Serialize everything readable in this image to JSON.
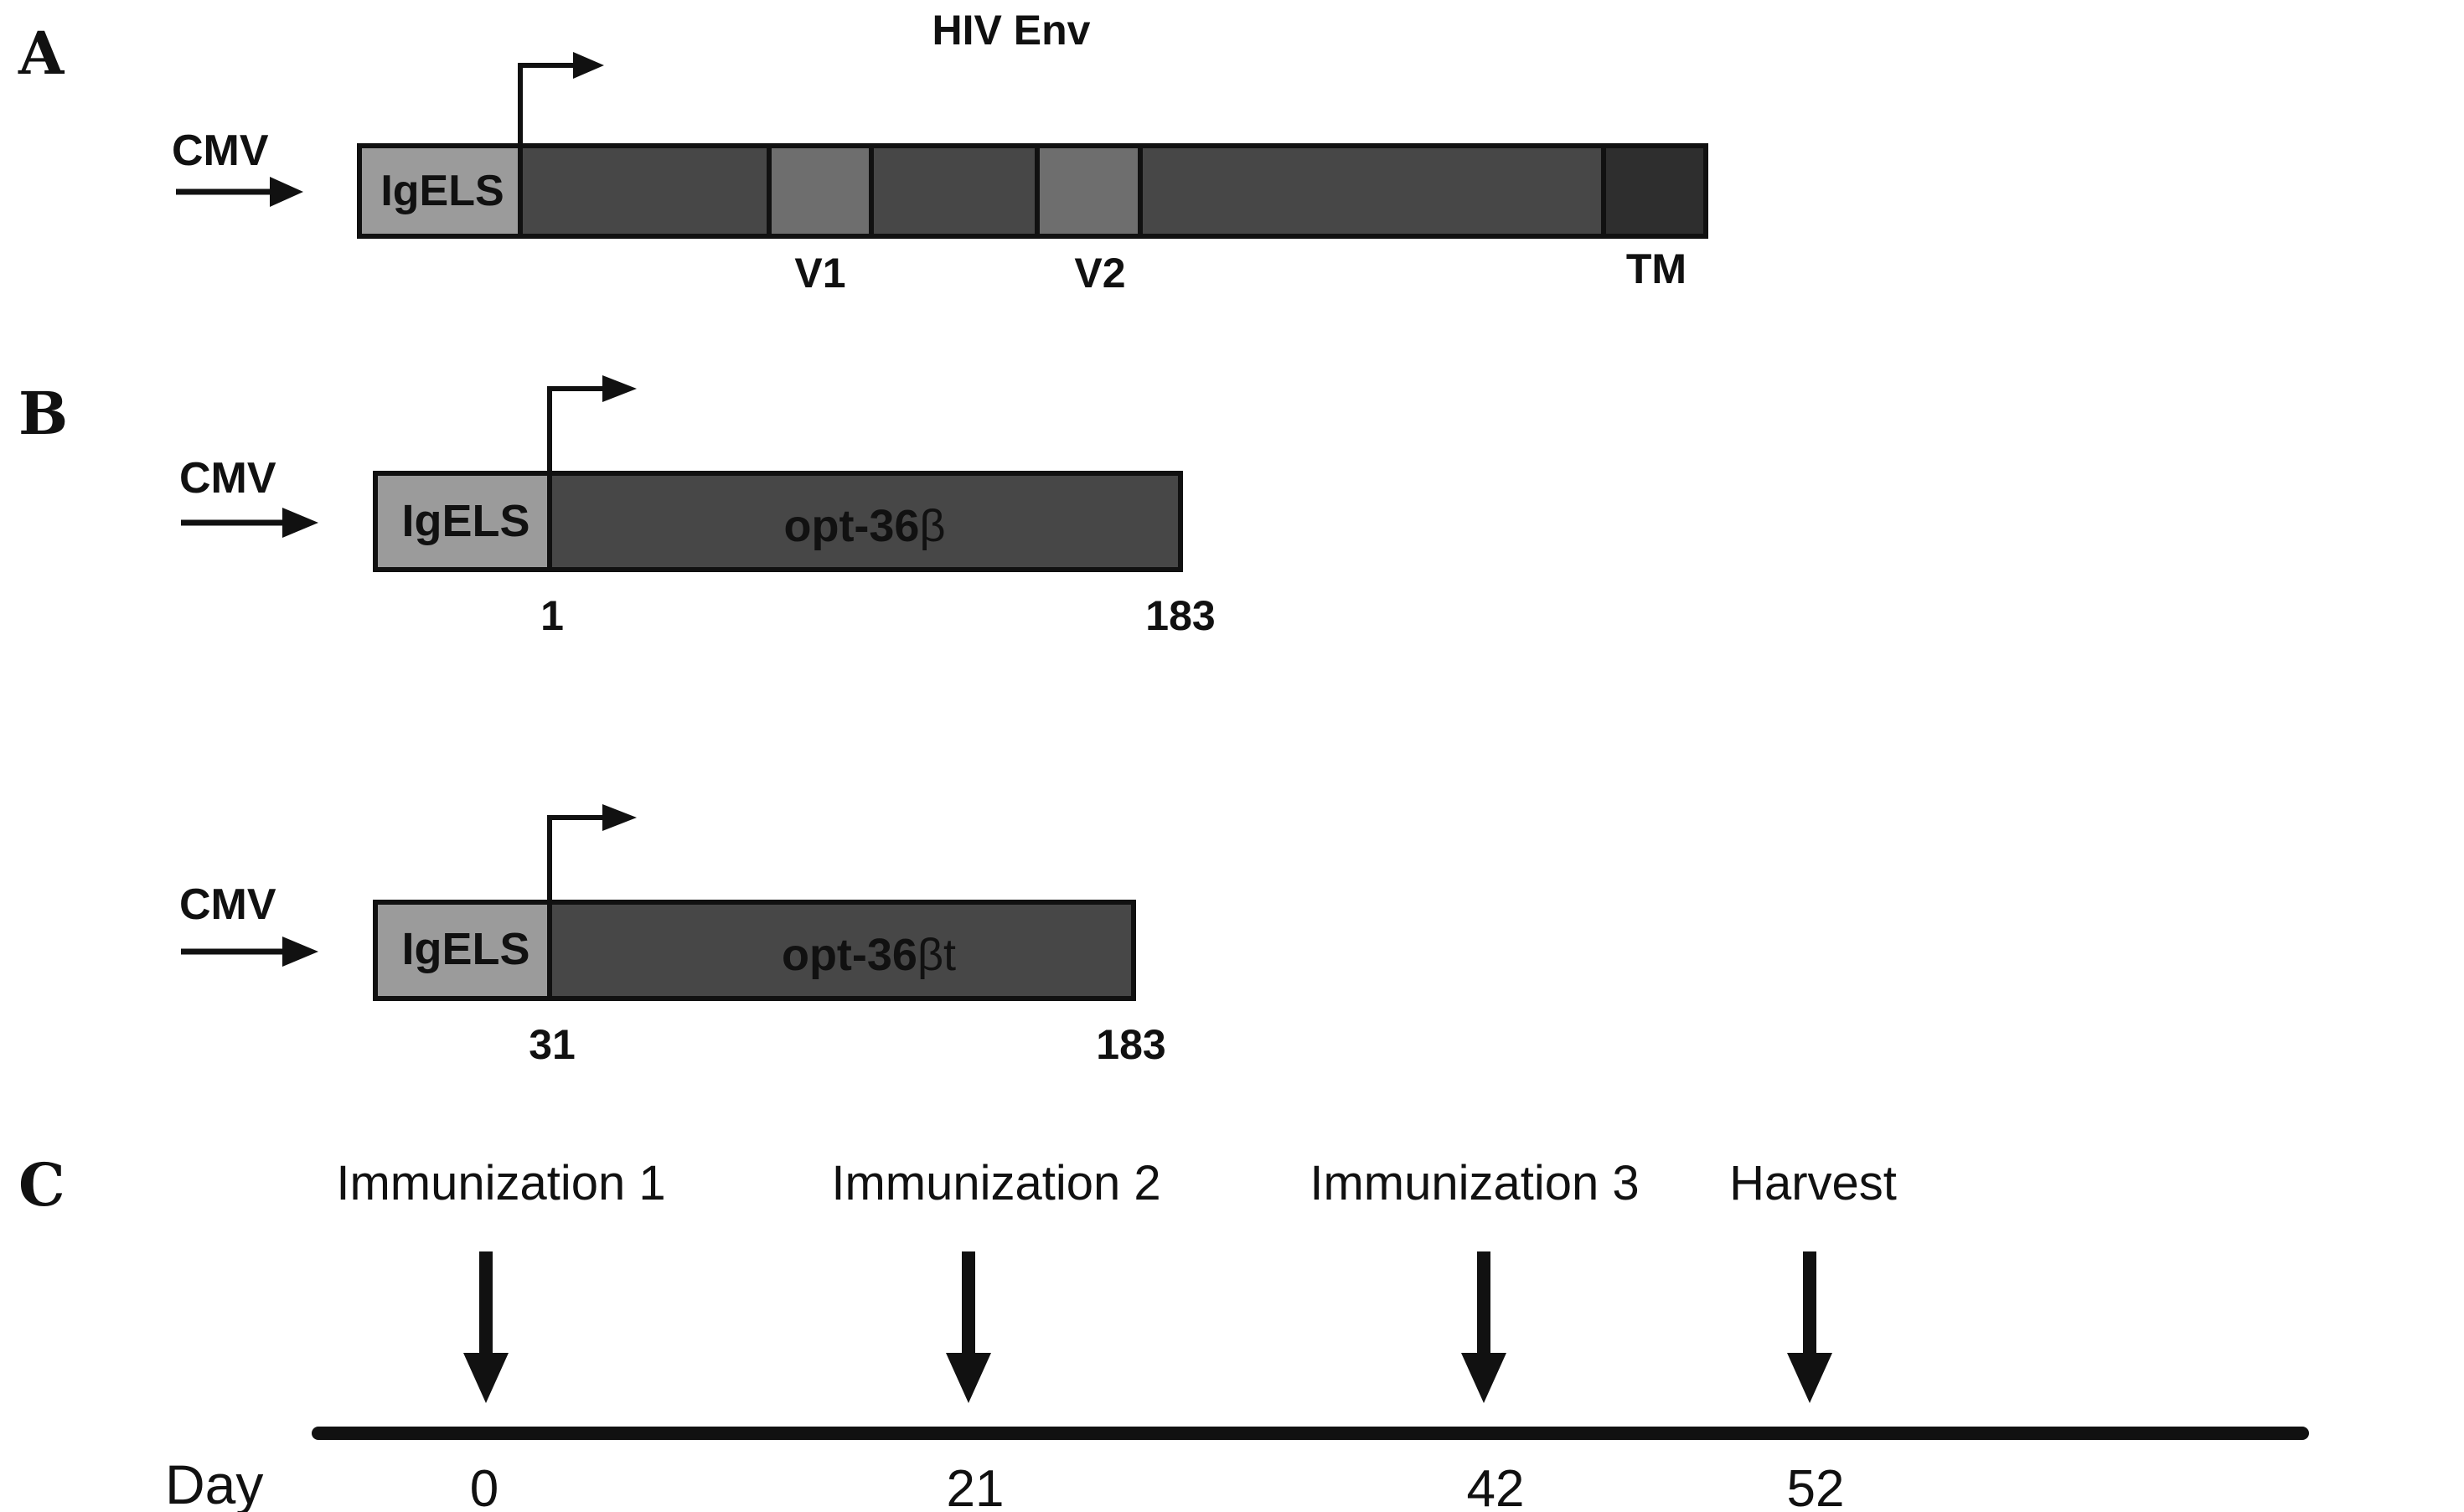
{
  "panels": {
    "a": {
      "letter": "A",
      "title": "HIV Env",
      "promoter": "CMV",
      "leader": "IgELS",
      "labels": {
        "v1": "V1",
        "v2": "V2",
        "tm": "TM"
      }
    },
    "b1": {
      "letter": "B",
      "promoter": "CMV",
      "leader": "IgELS",
      "construct_prefix": "opt-36",
      "construct_greek": "β",
      "start": "1",
      "end": "183"
    },
    "b2": {
      "promoter": "CMV",
      "leader": "IgELS",
      "construct_prefix": "opt-36",
      "construct_greek": "βt",
      "start": "31",
      "end": "183"
    },
    "c": {
      "letter": "C",
      "day_label": "Day",
      "events": [
        {
          "label": "Immunization 1",
          "day": "0"
        },
        {
          "label": "Immunization 2",
          "day": "21"
        },
        {
          "label": "Immunization 3",
          "day": "42"
        },
        {
          "label": "Harvest",
          "day": "52"
        }
      ]
    }
  },
  "colors": {
    "dark_segment": "#474747",
    "variable_loop": "#6e6e6e",
    "leader": "#9b9b9b",
    "tm": "#2e2e2e",
    "ink": "#111111"
  }
}
